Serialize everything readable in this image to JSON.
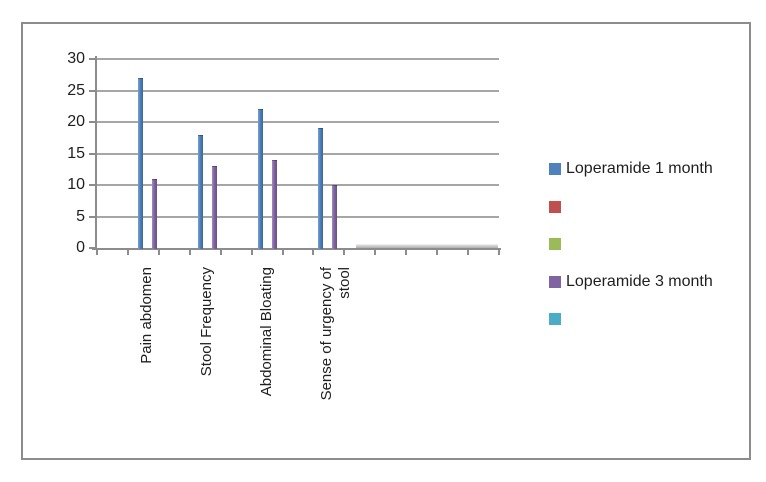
{
  "chart_data": {
    "type": "bar",
    "title": "",
    "xlabel": "",
    "ylabel": "",
    "categories": [
      "Pain abdomen",
      "Stool Frequency",
      "Abdominal Bloating",
      "Sense of urgency of stool"
    ],
    "category_label_lines": [
      [
        "Pain abdomen"
      ],
      [
        "Stool Frequency"
      ],
      [
        "Abdominal Bloating"
      ],
      [
        "Sense of urgency of",
        "stool"
      ]
    ],
    "series": [
      {
        "name": "Loperamide 1 month",
        "color": "#4f81bd",
        "values": [
          27,
          18,
          22,
          19
        ]
      },
      {
        "name": "",
        "color": "#c0504d",
        "values": []
      },
      {
        "name": "",
        "color": "#9bbb59",
        "values": []
      },
      {
        "name": "Loperamide 3 month",
        "color": "#8064a2",
        "values": [
          11,
          13,
          14,
          10
        ]
      },
      {
        "name": "",
        "color": "#4bacc6",
        "values": []
      }
    ],
    "ylim": [
      0,
      30
    ],
    "yticks": [
      0,
      5,
      10,
      15,
      20,
      25,
      30
    ],
    "grid": true,
    "gridline_color": "#a6a6a6",
    "axis_color": "#8c8c8c",
    "legend_position": "right"
  }
}
